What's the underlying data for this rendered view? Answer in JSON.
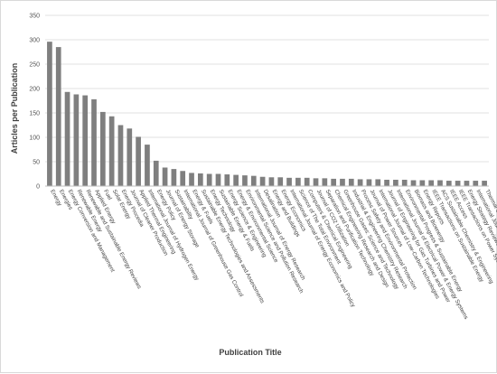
{
  "chart_data": {
    "type": "bar",
    "title": "",
    "xlabel": "Publication Title",
    "ylabel": "Articles per Publication",
    "ylim": [
      0,
      350
    ],
    "yticks": [
      0,
      50,
      100,
      150,
      200,
      250,
      300,
      350
    ],
    "grid": true,
    "bar_color": "#7f7f7f",
    "categories": [
      "Energy",
      "Energies",
      "Energy Conversion and Management",
      "Renewable Energy",
      "Renewable and Sustainable Energy Reviews",
      "Applied Energy",
      "Fuel",
      "Solar Energy",
      "Energy Procedia",
      "Journal of Cleaner Production",
      "Applied Thermal Engineering",
      "International Journal of Hydrogen Energy",
      "Energy Policy",
      "Journal of Energy Storage",
      "Sustainability",
      "International Journal of Greenhouse Gas Control",
      "Energy & Fuels",
      "Sustainable Energy Technologies and Assessments",
      "Energy Technology",
      "Sustainable Energy & Fuels",
      "Energy Science & Engineering",
      "Energy & Environmental Science",
      "Environmental Science and Pollution Research",
      "International Journal of Energy Research",
      "Desalination",
      "Energy and Buildings",
      "Energy Economics",
      "International Journal of Energy Economics and Policy",
      "Science of The Total Environment",
      "Computers & Chemical Engineering",
      "Journal of CO2 Utilization",
      "Separation and Purification Technology",
      "Chemical Engineering Research and Design",
      "Greenhouse Gases: Science and Technology",
      "Industrial & Engineering Chemistry Research",
      "Process Safety and Environmental Protection",
      "Journal of Power Sources",
      "International Journal of Low-Carbon Technologies",
      "Journal of Engineering for Gas Turbines and Power",
      "International Journal of Electrical Power & Energy Systems",
      "Environmental Progress & Sustainable Energy",
      "Biomass and Bioenergy",
      "Energy Reports",
      "IEEE Transactions on Sustainable Energy",
      "ACS Sustainable Chemistry & Engineering",
      "IEEE Access",
      "IEEE Transactions on Power Systems",
      "Energy Strategy Reviews",
      "International Journal of Green Energy",
      "Thermal Science and Engineering Progress"
    ],
    "values": [
      296,
      285,
      193,
      188,
      186,
      178,
      152,
      143,
      125,
      118,
      101,
      85,
      52,
      38,
      35,
      31,
      27,
      26,
      25,
      25,
      24,
      23,
      22,
      21,
      19,
      18,
      18,
      17,
      17,
      17,
      16,
      16,
      15,
      15,
      15,
      14,
      14,
      14,
      13,
      13,
      13,
      12,
      12,
      12,
      12,
      11,
      11,
      11,
      11,
      11
    ]
  }
}
